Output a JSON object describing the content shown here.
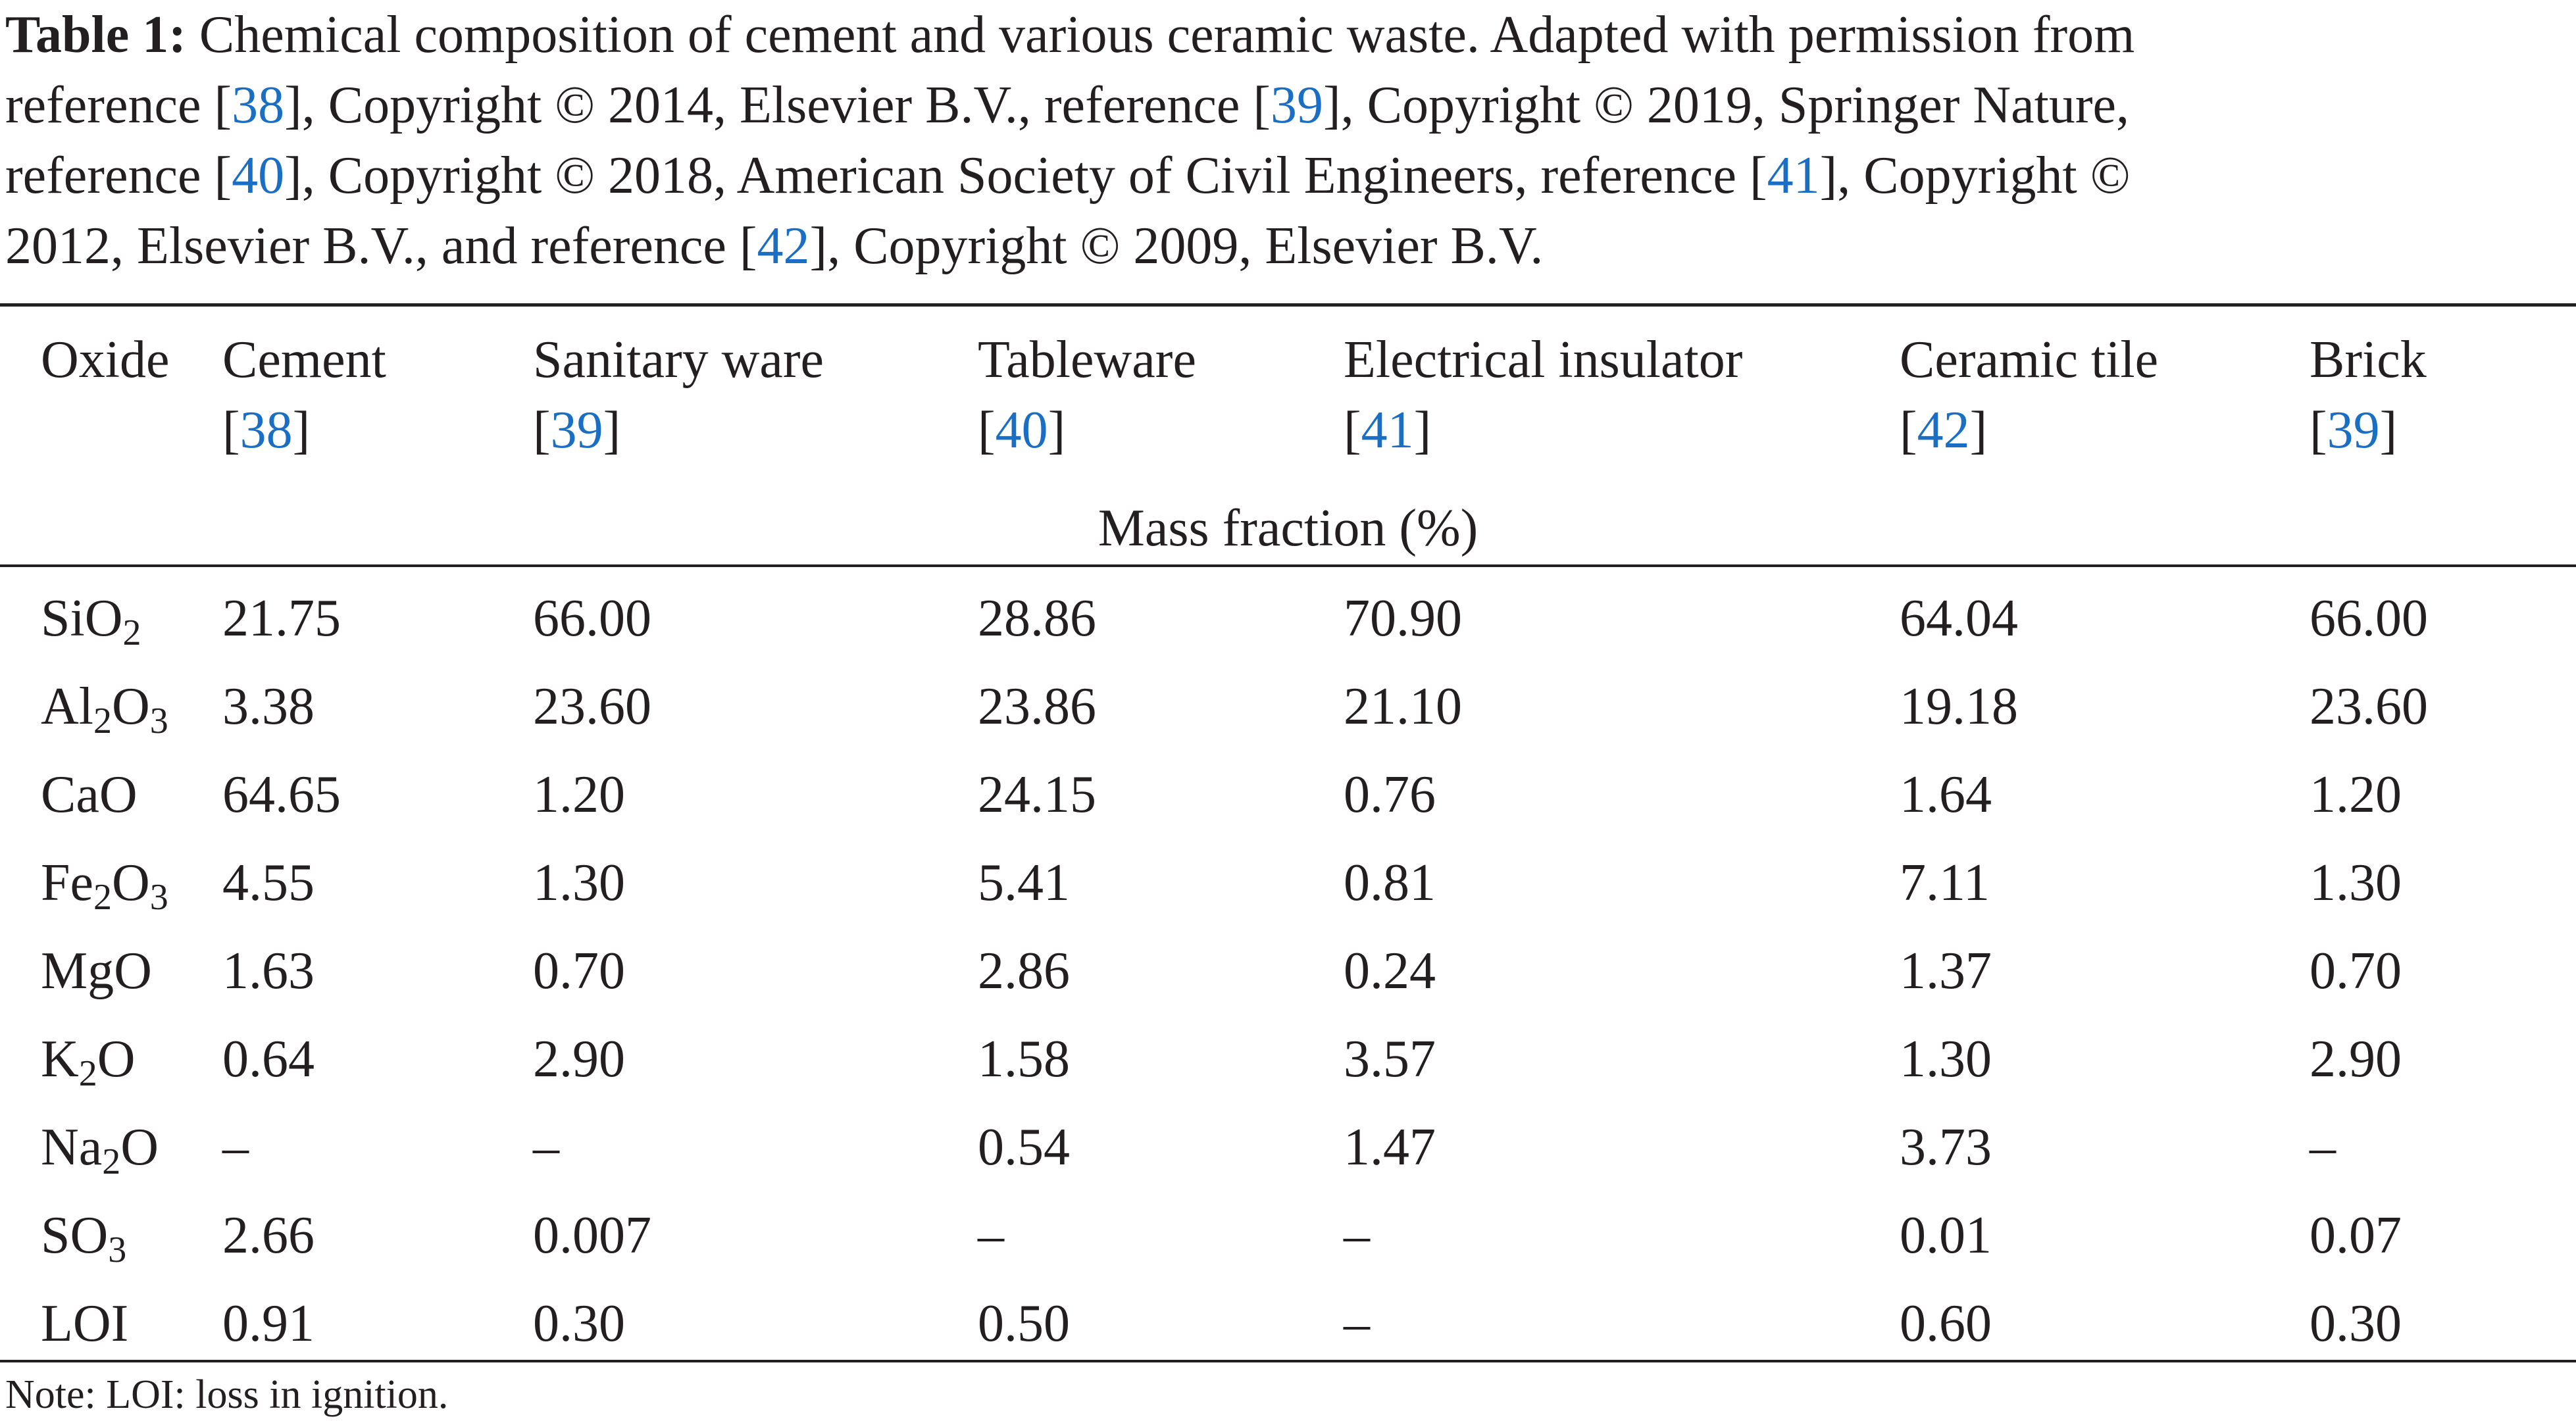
{
  "caption": {
    "label": "Table 1:",
    "line1_text": " Chemical composition of cement and various ceramic waste. Adapted with permission from",
    "line2_a": "reference [",
    "line2_ref1": "38",
    "line2_b": "], Copyright © 2014, Elsevier B.V., reference [",
    "line2_ref2": "39",
    "line2_c": "], Copyright © 2019, Springer Nature,",
    "line3_a": "reference [",
    "line3_ref1": "40",
    "line3_b": "], Copyright © 2018, American Society of Civil Engineers, reference [",
    "line3_ref2": "41",
    "line3_c": "], Copyright ©",
    "line4_a": "2012, Elsevier B.V., and reference [",
    "line4_ref": "42",
    "line4_b": "], Copyright © 2009, Elsevier B.V."
  },
  "table": {
    "headers": [
      {
        "label": "Oxide",
        "ref": ""
      },
      {
        "label": "Cement",
        "ref": "38"
      },
      {
        "label": "Sanitary ware",
        "ref": "39"
      },
      {
        "label": "Tableware",
        "ref": "40"
      },
      {
        "label": "Electrical insulator",
        "ref": "41"
      },
      {
        "label": "Ceramic tile",
        "ref": "42"
      },
      {
        "label": "Brick",
        "ref": "39"
      }
    ],
    "bracket_open": "[",
    "bracket_close": "]",
    "unit_label": "Mass fraction (%)",
    "rows": [
      {
        "oxide": {
          "base": "SiO",
          "sub1": "2",
          "mid": "",
          "sub2": ""
        },
        "values": [
          "21.75",
          "66.00",
          "28.86",
          "70.90",
          "64.04",
          "66.00"
        ]
      },
      {
        "oxide": {
          "base": "Al",
          "sub1": "2",
          "mid": "O",
          "sub2": "3"
        },
        "values": [
          "3.38",
          "23.60",
          "23.86",
          "21.10",
          "19.18",
          "23.60"
        ]
      },
      {
        "oxide": {
          "base": "CaO",
          "sub1": "",
          "mid": "",
          "sub2": ""
        },
        "values": [
          "64.65",
          "1.20",
          "24.15",
          "0.76",
          "1.64",
          "1.20"
        ]
      },
      {
        "oxide": {
          "base": "Fe",
          "sub1": "2",
          "mid": "O",
          "sub2": "3"
        },
        "values": [
          "4.55",
          "1.30",
          "5.41",
          "0.81",
          "7.11",
          "1.30"
        ]
      },
      {
        "oxide": {
          "base": "MgO",
          "sub1": "",
          "mid": "",
          "sub2": ""
        },
        "values": [
          "1.63",
          "0.70",
          "2.86",
          "0.24",
          "1.37",
          "0.70"
        ]
      },
      {
        "oxide": {
          "base": "K",
          "sub1": "2",
          "mid": "O",
          "sub2": ""
        },
        "values": [
          "0.64",
          "2.90",
          "1.58",
          "3.57",
          "1.30",
          "2.90"
        ]
      },
      {
        "oxide": {
          "base": "Na",
          "sub1": "2",
          "mid": "O",
          "sub2": ""
        },
        "values": [
          "–",
          "–",
          "0.54",
          "1.47",
          "3.73",
          "–"
        ]
      },
      {
        "oxide": {
          "base": "SO",
          "sub1": "3",
          "mid": "",
          "sub2": ""
        },
        "values": [
          "2.66",
          "0.007",
          "–",
          "–",
          "0.01",
          "0.07"
        ]
      },
      {
        "oxide": {
          "base": "LOI",
          "sub1": "",
          "mid": "",
          "sub2": ""
        },
        "values": [
          "0.91",
          "0.30",
          "0.50",
          "–",
          "0.60",
          "0.30"
        ]
      }
    ]
  },
  "note": "Note: LOI: loss in ignition.",
  "colors": {
    "text": "#231f20",
    "reference_link": "#1a6fc4"
  }
}
